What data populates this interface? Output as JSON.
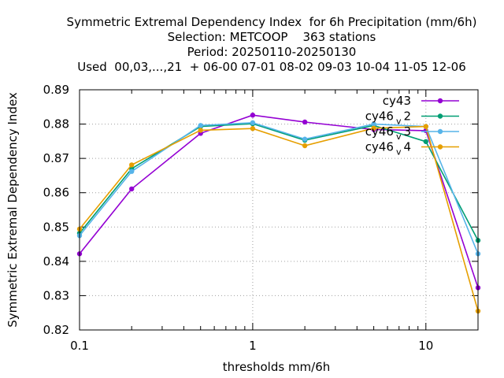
{
  "chart_data": {
    "type": "line",
    "title_lines": [
      "Symmetric Extremal Dependency Index  for 6h Precipitation (mm/6h)",
      "Selection: METCOOP    363 stations",
      "Period: 20250110-20250130",
      "Used  00,03,...,21  + 06-00 07-01 08-02 09-03 10-04 11-05 12-06"
    ],
    "xlabel": "thresholds mm/6h",
    "ylabel": "Symmetric Extremal Dependency Index",
    "x_scale": "log",
    "xlim": [
      0.1,
      20
    ],
    "ylim": [
      0.82,
      0.89
    ],
    "x_ticks": [
      {
        "value": 0.1,
        "label": "0.1"
      },
      {
        "value": 1,
        "label": "1"
      },
      {
        "value": 10,
        "label": "10"
      }
    ],
    "x_minor_ticks": [
      0.2,
      0.3,
      0.4,
      0.5,
      0.6,
      0.7,
      0.8,
      0.9,
      2,
      3,
      4,
      5,
      6,
      7,
      8,
      9,
      20
    ],
    "y_ticks": [
      {
        "value": 0.82,
        "label": "0.82"
      },
      {
        "value": 0.83,
        "label": "0.83"
      },
      {
        "value": 0.84,
        "label": "0.84"
      },
      {
        "value": 0.85,
        "label": "0.85"
      },
      {
        "value": 0.86,
        "label": "0.86"
      },
      {
        "value": 0.87,
        "label": "0.87"
      },
      {
        "value": 0.88,
        "label": "0.88"
      },
      {
        "value": 0.89,
        "label": "0.89"
      }
    ],
    "grid": true,
    "legend_position": "top-right",
    "x": [
      0.1,
      0.2,
      0.5,
      1,
      2,
      5,
      10,
      20
    ],
    "series": [
      {
        "name": "cy43",
        "label_main": "cy43",
        "label_sub": "",
        "color": "#9400d3",
        "values": [
          0.8422,
          0.8611,
          0.8773,
          0.8826,
          0.8806,
          0.8784,
          0.8781,
          0.8323
        ]
      },
      {
        "name": "cy46_v2",
        "label_main": "cy46",
        "label_sub": "v",
        "label_tail": "2",
        "color": "#009e73",
        "values": [
          0.8482,
          0.867,
          0.8793,
          0.8801,
          0.8753,
          0.8796,
          0.8749,
          0.8461
        ]
      },
      {
        "name": "cy46_v3",
        "label_main": "cy46",
        "label_sub": "v",
        "label_tail": "3",
        "color": "#56b4e9",
        "values": [
          0.8475,
          0.8662,
          0.8796,
          0.8804,
          0.8756,
          0.88,
          0.8793,
          0.8422
        ]
      },
      {
        "name": "cy46_v4",
        "label_main": "cy46",
        "label_sub": "v",
        "label_tail": "4",
        "color": "#e69f00",
        "values": [
          0.8494,
          0.8681,
          0.8782,
          0.8787,
          0.8737,
          0.8788,
          0.8793,
          0.8255
        ]
      }
    ]
  }
}
